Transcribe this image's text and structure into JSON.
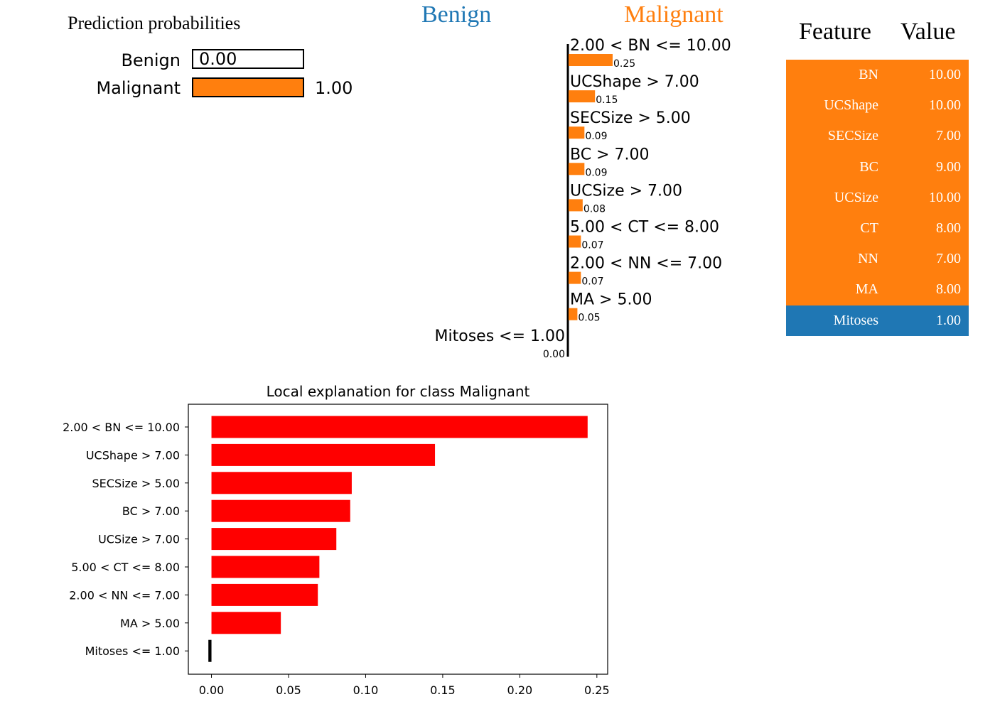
{
  "prediction": {
    "title": "Prediction probabilities",
    "classes": [
      {
        "name": "Benign",
        "prob": 0.0,
        "prob_label": "0.00",
        "color": "#ffffff"
      },
      {
        "name": "Malignant",
        "prob": 1.0,
        "prob_label": "1.00",
        "color": "#ff7f0e"
      }
    ]
  },
  "header": {
    "left_class": "Benign",
    "right_class": "Malignant",
    "left_color": "#1f77b4",
    "right_color": "#ff7f0e"
  },
  "table": {
    "col_feature": "Feature",
    "col_value": "Value",
    "rows": [
      {
        "feature": "BN",
        "value": "10.00",
        "color": "#ff7f0e"
      },
      {
        "feature": "UCShape",
        "value": "10.00",
        "color": "#ff7f0e"
      },
      {
        "feature": "SECSize",
        "value": "7.00",
        "color": "#ff7f0e"
      },
      {
        "feature": "BC",
        "value": "9.00",
        "color": "#ff7f0e"
      },
      {
        "feature": "UCSize",
        "value": "10.00",
        "color": "#ff7f0e"
      },
      {
        "feature": "CT",
        "value": "8.00",
        "color": "#ff7f0e"
      },
      {
        "feature": "NN",
        "value": "7.00",
        "color": "#ff7f0e"
      },
      {
        "feature": "MA",
        "value": "8.00",
        "color": "#ff7f0e"
      },
      {
        "feature": "Mitoses",
        "value": "1.00",
        "color": "#1f77b4"
      }
    ]
  },
  "chart_data": [
    {
      "type": "bar",
      "orientation": "horizontal",
      "categories": [
        "2.00 < BN <= 10.00",
        "UCShape > 7.00",
        "SECSize > 5.00",
        "BC > 7.00",
        "UCSize > 7.00",
        "5.00 < CT <= 8.00",
        "2.00 < NN <= 7.00",
        "MA > 5.00",
        "Mitoses <= 1.00"
      ],
      "values": [
        0.25,
        0.15,
        0.09,
        0.09,
        0.08,
        0.07,
        0.07,
        0.05,
        0.0
      ],
      "value_labels": [
        "0.25",
        "0.15",
        "0.09",
        "0.09",
        "0.08",
        "0.07",
        "0.07",
        "0.05",
        "0.00"
      ],
      "color": "#ff7f0e",
      "xlim": [
        -0.25,
        0.25
      ],
      "title": "",
      "xlabel": "",
      "ylabel": ""
    },
    {
      "type": "bar",
      "orientation": "horizontal",
      "title": "Local explanation for class Malignant",
      "categories": [
        "2.00 < BN <= 10.00",
        "UCShape > 7.00",
        "SECSize > 5.00",
        "BC > 7.00",
        "UCSize > 7.00",
        "5.00 < CT <= 8.00",
        "2.00 < NN <= 7.00",
        "MA > 5.00",
        "Mitoses <= 1.00"
      ],
      "values": [
        0.244,
        0.145,
        0.091,
        0.09,
        0.081,
        0.07,
        0.069,
        0.045,
        -0.002
      ],
      "colors": [
        "#ff0000",
        "#ff0000",
        "#ff0000",
        "#ff0000",
        "#ff0000",
        "#ff0000",
        "#ff0000",
        "#ff0000",
        "#000000"
      ],
      "xticks": [
        "0.00",
        "0.05",
        "0.10",
        "0.15",
        "0.20",
        "0.25"
      ],
      "xlim": [
        -0.015,
        0.257
      ],
      "xlabel": "",
      "ylabel": "",
      "grid": false
    }
  ]
}
